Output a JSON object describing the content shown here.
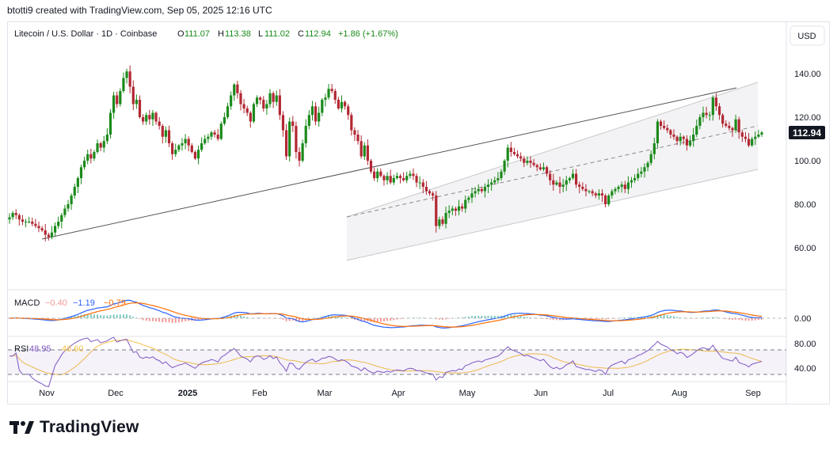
{
  "credit": "btotti9 created with TradingView.com, Sep 05, 2025 12:16 UTC",
  "brand": "TradingView",
  "currency_button": "USD",
  "header": {
    "symbol": "Litecoin / U.S. Dollar · 1D · Coinbase",
    "open_label": "O",
    "open": "111.07",
    "high_label": "H",
    "high": "113.38",
    "low_label": "L",
    "low": "111.02",
    "close_label": "C",
    "close": "112.94",
    "change": "+1.86 (+1.67%)"
  },
  "last_price_tag": "112.94",
  "colors": {
    "up": "#26a69a",
    "down": "#b22833",
    "upDark": "#1b8a1b",
    "macd": "#2962ff",
    "signal": "#ff6d00",
    "rsi": "#7e57c2",
    "rsi_ma": "#f7c244",
    "text": "#131722",
    "grid": "#e0e3eb"
  },
  "macd_panel": {
    "label": "MACD",
    "hist": "−0.40",
    "macd": "−1.19",
    "signal": "−0.79",
    "tick": "0.00"
  },
  "rsi_panel": {
    "label": "RSI",
    "rsi": "48.95",
    "ma": "46.60",
    "ticks": [
      "80.00",
      "40.00"
    ]
  },
  "chart_data": {
    "type": "candlestick",
    "title": "Litecoin / U.S. Dollar · 1D · Coinbase",
    "price_axis": {
      "ticks": [
        140,
        120,
        100,
        80,
        60
      ],
      "unit": "USD"
    },
    "x_ticks": [
      "Nov",
      "Dec",
      "2025",
      "Feb",
      "Mar",
      "Apr",
      "May",
      "Jun",
      "Jul",
      "Aug",
      "Sep"
    ],
    "start_date": "2024-10-23",
    "closes": [
      74,
      76,
      75,
      73,
      72,
      72,
      72,
      71,
      70,
      69,
      68,
      66,
      65,
      67,
      70,
      72,
      75,
      78,
      80,
      84,
      88,
      92,
      97,
      100,
      103,
      101,
      104,
      108,
      106,
      109,
      112,
      122,
      130,
      126,
      132,
      138,
      141,
      134,
      126,
      128,
      120,
      118,
      121,
      119,
      122,
      118,
      116,
      111,
      114,
      108,
      103,
      105,
      107,
      108,
      110,
      107,
      104,
      101,
      105,
      108,
      110,
      111,
      113,
      112,
      110,
      117,
      120,
      125,
      130,
      135,
      131,
      126,
      124,
      122,
      118,
      126,
      129,
      128,
      124,
      126,
      131,
      127,
      130,
      121,
      114,
      102,
      118,
      116,
      104,
      100,
      108,
      116,
      121,
      125,
      118,
      122,
      128,
      129,
      133,
      132,
      128,
      124,
      127,
      125,
      121,
      114,
      112,
      109,
      102,
      107,
      100,
      95,
      92,
      95,
      93,
      91,
      93,
      90,
      92,
      93,
      92,
      91,
      93,
      94,
      93,
      90,
      90,
      88,
      86,
      85,
      84,
      70,
      73,
      71,
      76,
      77,
      78,
      77,
      79,
      78,
      82,
      83,
      85,
      86,
      87,
      86,
      88,
      89,
      90,
      91,
      92,
      95,
      100,
      106,
      104,
      103,
      102,
      101,
      99,
      100,
      99,
      98,
      97,
      96,
      97,
      94,
      91,
      89,
      90,
      88,
      89,
      91,
      92,
      94,
      89,
      88,
      87,
      86,
      86,
      85,
      84,
      85,
      84,
      80,
      84,
      86,
      87,
      88,
      89,
      87,
      90,
      91,
      92,
      94,
      95,
      97,
      99,
      103,
      108,
      118,
      116,
      115,
      114,
      112,
      111,
      109,
      111,
      110,
      107,
      109,
      112,
      116,
      120,
      122,
      121,
      121,
      129,
      125,
      121,
      117,
      116,
      115,
      114,
      119,
      113,
      111,
      110,
      107,
      110,
      111,
      112,
      113
    ],
    "macd": {
      "hist": "−0.40",
      "macd": "−1.19",
      "signal": "−0.79",
      "zero_line": 0
    },
    "rsi": {
      "value": 48.95,
      "ma": 46.6,
      "upper": 70,
      "lower": 30,
      "ticks": [
        80,
        40
      ]
    }
  }
}
